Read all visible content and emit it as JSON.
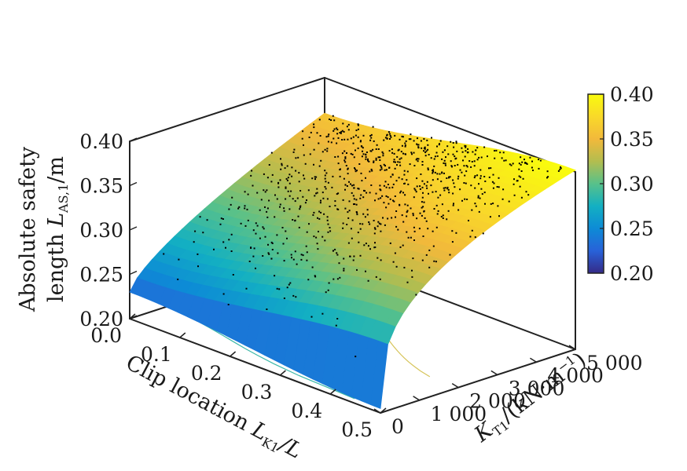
{
  "chart_data": {
    "type": "surface3d",
    "title": "",
    "x_axis": {
      "label_prefix": "Clip location ",
      "label_var": "L",
      "label_sub": "K1",
      "label_suffix": "/L",
      "range": [
        0,
        0.5
      ],
      "ticks": [
        "0.0",
        "0.1",
        "0.2",
        "0.3",
        "0.4",
        "0.5"
      ]
    },
    "y_axis": {
      "label_var": "K",
      "label_sub": "T1",
      "label_suffix": "/(kN·m",
      "label_sup": "−1",
      "label_close": ")",
      "range": [
        0,
        5000
      ],
      "ticks": [
        "0",
        "1 000",
        "2 000",
        "3 000",
        "4 000",
        "5 000"
      ]
    },
    "z_axis": {
      "label_line1": "Absolute safety",
      "label_line2_prefix": "length ",
      "label_var": "L",
      "label_sub": "AS,1",
      "label_suffix": "/m",
      "range": [
        0.2,
        0.4
      ],
      "ticks": [
        "0.20",
        "0.25",
        "0.30",
        "0.35",
        "0.40"
      ]
    },
    "colorbar": {
      "range": [
        0.2,
        0.4
      ],
      "ticks": [
        "0.20",
        "0.25",
        "0.30",
        "0.35",
        "0.40"
      ],
      "colormap": [
        "#352a87",
        "#2862d9",
        "#0d8bd6",
        "#13b0c2",
        "#58c18a",
        "#b3bd4f",
        "#f2b93b",
        "#f9d929",
        "#f9fb0e"
      ]
    },
    "surface": {
      "corner_values": {
        "x0_y0": 0.23,
        "x05_y0": 0.205,
        "x0_y5000": 0.36,
        "x05_y5000": 0.402
      }
    },
    "scatter_color": "#000000",
    "contour_colors": [
      "#2c5fd1",
      "#1a9ad0",
      "#3cb8a8",
      "#8cc56a",
      "#d6c45a"
    ]
  }
}
